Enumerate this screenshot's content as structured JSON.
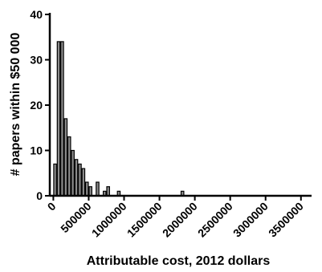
{
  "chart_data": {
    "type": "bar",
    "title": "",
    "xlabel": "Attributable cost, 2012 dollars",
    "ylabel": "# papers within $50 000",
    "bin_width": 50000,
    "xlim": [
      -50000,
      3650000
    ],
    "ylim": [
      0,
      40
    ],
    "grid": false,
    "legend": "none",
    "xticks": [
      0,
      500000,
      1000000,
      1500000,
      2000000,
      2500000,
      3000000,
      3500000
    ],
    "xtick_labels": [
      "0",
      "500000",
      "1000000",
      "1500000",
      "2000000",
      "2500000",
      "3000000",
      "3500000"
    ],
    "yticks": [
      0,
      10,
      20,
      30,
      40
    ],
    "ytick_labels": [
      "0",
      "10",
      "20",
      "30",
      "40"
    ],
    "bins": [
      {
        "x": 0,
        "count": 7
      },
      {
        "x": 50000,
        "count": 34
      },
      {
        "x": 100000,
        "count": 34
      },
      {
        "x": 150000,
        "count": 17
      },
      {
        "x": 200000,
        "count": 13
      },
      {
        "x": 250000,
        "count": 10
      },
      {
        "x": 300000,
        "count": 8
      },
      {
        "x": 350000,
        "count": 7
      },
      {
        "x": 400000,
        "count": 6
      },
      {
        "x": 450000,
        "count": 3
      },
      {
        "x": 500000,
        "count": 2
      },
      {
        "x": 600000,
        "count": 3
      },
      {
        "x": 700000,
        "count": 1
      },
      {
        "x": 750000,
        "count": 2
      },
      {
        "x": 900000,
        "count": 1
      },
      {
        "x": 1800000,
        "count": 1
      }
    ],
    "bar_fill": "#8c8c8c",
    "bar_stroke": "#000000"
  }
}
